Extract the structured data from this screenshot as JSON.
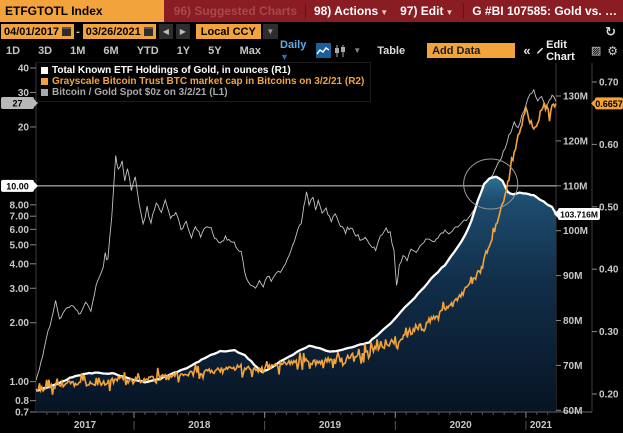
{
  "toolbar": {
    "ticker": "ETFGTOTL Index",
    "suggested_charts": "96) Suggested Charts",
    "actions": "98) Actions",
    "edit": "97) Edit",
    "chart_title": "G #BI 107585: Gold vs. …",
    "date_from": "04/01/2017",
    "date_to": "03/26/2021",
    "date_separator": "-",
    "prev_label": "◀",
    "next_label": "▶",
    "currency": "Local CCY",
    "ranges": [
      "1D",
      "3D",
      "1M",
      "6M",
      "YTD",
      "1Y",
      "5Y",
      "Max"
    ],
    "period": "Daily",
    "table_label": "Table",
    "add_data_label": "Add Data",
    "collapse_label": "«",
    "edit_chart_label": "Edit Chart"
  },
  "legend": [
    {
      "label": "Total Known ETF Holdings of Gold, in ounces (R1)",
      "color": "#ffffff"
    },
    {
      "label": "Grayscale Bitcoin Trust BTC market cap in Bitcoins on 3/2/21 (R2)",
      "color": "#f2a33c"
    },
    {
      "label": "Bitcoin / Gold Spot $0z on 3/2/21 (L1)",
      "color": "#a8a8a8"
    }
  ],
  "badges": [
    {
      "axis": "L1",
      "value": 26.5,
      "label": "27",
      "bg": "#b8b8b8",
      "fg": "#000000"
    },
    {
      "axis": "L1",
      "value": 10,
      "label": "10.00",
      "bg": "#ffffff",
      "fg": "#000000"
    },
    {
      "axis": "R1",
      "value": 103.716,
      "label": "103.716M",
      "bg": "#ffffff",
      "fg": "#000000"
    },
    {
      "axis": "R2",
      "value": 0.6657,
      "label": "0.6657",
      "bg": "#f2a33c",
      "fg": "#000000"
    }
  ],
  "chart_data": {
    "type": "line",
    "title": "Gold vs Bitcoin: ETF holdings, GBTC market cap, BTC/Gold ratio",
    "x_axis": {
      "label_years": [
        "2017",
        "2018",
        "2019",
        "2020",
        "2021"
      ],
      "range": [
        2017.25,
        2021.23
      ],
      "grid": false
    },
    "axes": {
      "L1": {
        "scale": "log",
        "range": [
          0.7,
          41
        ],
        "ticks": [
          {
            "v": 40,
            "label": "40"
          },
          {
            "v": 30,
            "label": "30"
          },
          {
            "v": 20,
            "label": "20"
          },
          {
            "v": 10,
            "label": "10.00"
          },
          {
            "v": 8,
            "label": "8.00"
          },
          {
            "v": 7,
            "label": "7.00"
          },
          {
            "v": 6,
            "label": "6.00"
          },
          {
            "v": 5,
            "label": "5.00"
          },
          {
            "v": 4,
            "label": "4.00"
          },
          {
            "v": 3,
            "label": "3.00"
          },
          {
            "v": 2,
            "label": "2.00"
          },
          {
            "v": 1,
            "label": "1.00"
          },
          {
            "v": 0.8,
            "label": "0.8"
          },
          {
            "v": 0.7,
            "label": "0.7"
          }
        ]
      },
      "R1": {
        "scale": "linear",
        "range": [
          59.6,
          137.3
        ],
        "unit": "M oz",
        "ticks": [
          {
            "v": 130,
            "label": "130M"
          },
          {
            "v": 120,
            "label": "120M"
          },
          {
            "v": 110,
            "label": "110M"
          },
          {
            "v": 100,
            "label": "100M"
          },
          {
            "v": 90,
            "label": "90M"
          },
          {
            "v": 80,
            "label": "80M"
          },
          {
            "v": 70,
            "label": "70M"
          },
          {
            "v": 60,
            "label": "60M"
          }
        ]
      },
      "R2": {
        "scale": "linear",
        "range": [
          0.171,
          0.73
        ],
        "unit": "M BTC",
        "ticks": [
          {
            "v": 0.7,
            "label": "0.70"
          },
          {
            "v": 0.6,
            "label": "0.60"
          },
          {
            "v": 0.5,
            "label": "0.50"
          },
          {
            "v": 0.4,
            "label": "0.40"
          },
          {
            "v": 0.3,
            "label": "0.30"
          },
          {
            "v": 0.2,
            "label": "0.20"
          }
        ]
      }
    },
    "annotations": {
      "hline": {
        "axis": "L1",
        "value": 10
      },
      "ellipse": {
        "x": 2020.73,
        "axis": "R1",
        "value": 110.4,
        "rx": 27,
        "ry": 25
      }
    },
    "series": [
      {
        "name": "Total Known ETF Holdings of Gold, in ounces",
        "axis": "R1",
        "color": "#ffffff",
        "fill": true,
        "last": 103.716,
        "points": [
          [
            2017.25,
            64.3
          ],
          [
            2017.4,
            65.7
          ],
          [
            2017.55,
            67.7
          ],
          [
            2017.7,
            68.4
          ],
          [
            2017.85,
            68.1
          ],
          [
            2017.97,
            67.0
          ],
          [
            2018.08,
            66.3
          ],
          [
            2018.2,
            67.0
          ],
          [
            2018.31,
            68.4
          ],
          [
            2018.43,
            69.7
          ],
          [
            2018.54,
            71.7
          ],
          [
            2018.66,
            73.1
          ],
          [
            2018.77,
            73.3
          ],
          [
            2018.85,
            72.2
          ],
          [
            2018.92,
            70.2
          ],
          [
            2018.98,
            68.6
          ],
          [
            2019.04,
            69.3
          ],
          [
            2019.12,
            70.8
          ],
          [
            2019.19,
            71.9
          ],
          [
            2019.27,
            73.3
          ],
          [
            2019.34,
            74.3
          ],
          [
            2019.42,
            73.9
          ],
          [
            2019.5,
            73.0
          ],
          [
            2019.57,
            73.3
          ],
          [
            2019.69,
            74.3
          ],
          [
            2019.8,
            75.2
          ],
          [
            2019.92,
            78.3
          ],
          [
            2019.99,
            80.1
          ],
          [
            2020.07,
            82.9
          ],
          [
            2020.15,
            85.1
          ],
          [
            2020.22,
            87.4
          ],
          [
            2020.3,
            90.1
          ],
          [
            2020.38,
            92.4
          ],
          [
            2020.45,
            95.3
          ],
          [
            2020.53,
            98.7
          ],
          [
            2020.58,
            102.0
          ],
          [
            2020.63,
            106.5
          ],
          [
            2020.68,
            110.3
          ],
          [
            2020.72,
            111.6
          ],
          [
            2020.77,
            112.0
          ],
          [
            2020.82,
            111.1
          ],
          [
            2020.86,
            108.7
          ],
          [
            2020.9,
            108.0
          ],
          [
            2020.95,
            108.5
          ],
          [
            2021.0,
            108.2
          ],
          [
            2021.06,
            107.8
          ],
          [
            2021.11,
            106.9
          ],
          [
            2021.16,
            106.0
          ],
          [
            2021.2,
            105.3
          ],
          [
            2021.23,
            103.716
          ]
        ]
      },
      {
        "name": "Grayscale Bitcoin Trust BTC market cap in Bitcoins",
        "axis": "R2",
        "color": "#f2a33c",
        "last": 0.6657,
        "points": [
          [
            2017.25,
            0.205
          ],
          [
            2017.43,
            0.215
          ],
          [
            2017.59,
            0.218
          ],
          [
            2017.74,
            0.215
          ],
          [
            2017.89,
            0.225
          ],
          [
            2018.05,
            0.222
          ],
          [
            2018.2,
            0.228
          ],
          [
            2018.35,
            0.232
          ],
          [
            2018.5,
            0.235
          ],
          [
            2018.66,
            0.238
          ],
          [
            2018.81,
            0.243
          ],
          [
            2018.96,
            0.24
          ],
          [
            2019.12,
            0.248
          ],
          [
            2019.27,
            0.253
          ],
          [
            2019.42,
            0.25
          ],
          [
            2019.57,
            0.258
          ],
          [
            2019.73,
            0.264
          ],
          [
            2019.88,
            0.272
          ],
          [
            2019.99,
            0.282
          ],
          [
            2020.11,
            0.298
          ],
          [
            2020.22,
            0.312
          ],
          [
            2020.34,
            0.33
          ],
          [
            2020.43,
            0.345
          ],
          [
            2020.51,
            0.36
          ],
          [
            2020.58,
            0.382
          ],
          [
            2020.66,
            0.405
          ],
          [
            2020.72,
            0.438
          ],
          [
            2020.77,
            0.47
          ],
          [
            2020.82,
            0.505
          ],
          [
            2020.87,
            0.545
          ],
          [
            2020.91,
            0.59
          ],
          [
            2020.96,
            0.628
          ],
          [
            2021.0,
            0.655
          ],
          [
            2021.03,
            0.638
          ],
          [
            2021.07,
            0.624
          ],
          [
            2021.11,
            0.652
          ],
          [
            2021.15,
            0.668
          ],
          [
            2021.18,
            0.645
          ],
          [
            2021.2,
            0.66
          ],
          [
            2021.23,
            0.6657
          ]
        ]
      },
      {
        "name": "Bitcoin / Gold Spot $0z",
        "axis": "L1",
        "color": "#c2c2c2",
        "last": 27,
        "points": [
          [
            2017.25,
            1.0
          ],
          [
            2017.3,
            1.35
          ],
          [
            2017.33,
            1.7
          ],
          [
            2017.37,
            2.1
          ],
          [
            2017.4,
            2.6
          ],
          [
            2017.43,
            2.1
          ],
          [
            2017.48,
            2.35
          ],
          [
            2017.53,
            2.45
          ],
          [
            2017.59,
            2.2
          ],
          [
            2017.63,
            2.55
          ],
          [
            2017.67,
            2.3
          ],
          [
            2017.71,
            3.1
          ],
          [
            2017.75,
            3.6
          ],
          [
            2017.78,
            4.5
          ],
          [
            2017.8,
            4.2
          ],
          [
            2017.83,
            7.0
          ],
          [
            2017.86,
            14.5
          ],
          [
            2017.88,
            11.8
          ],
          [
            2017.91,
            13.3
          ],
          [
            2017.93,
            10.5
          ],
          [
            2017.95,
            12.4
          ],
          [
            2017.98,
            9.5
          ],
          [
            2018.01,
            11.0
          ],
          [
            2018.04,
            8.0
          ],
          [
            2018.07,
            6.3
          ],
          [
            2018.1,
            7.6
          ],
          [
            2018.13,
            6.5
          ],
          [
            2018.17,
            8.3
          ],
          [
            2018.21,
            7.3
          ],
          [
            2018.24,
            8.5
          ],
          [
            2018.28,
            6.8
          ],
          [
            2018.32,
            7.4
          ],
          [
            2018.36,
            6.0
          ],
          [
            2018.4,
            6.5
          ],
          [
            2018.44,
            5.4
          ],
          [
            2018.47,
            6.2
          ],
          [
            2018.51,
            5.6
          ],
          [
            2018.55,
            6.4
          ],
          [
            2018.59,
            5.8
          ],
          [
            2018.63,
            5.3
          ],
          [
            2018.66,
            5.1
          ],
          [
            2018.7,
            5.4
          ],
          [
            2018.74,
            5.2
          ],
          [
            2018.78,
            4.9
          ],
          [
            2018.82,
            4.4
          ],
          [
            2018.86,
            3.4
          ],
          [
            2018.89,
            3.15
          ],
          [
            2018.93,
            3.0
          ],
          [
            2018.96,
            3.3
          ],
          [
            2018.99,
            3.1
          ],
          [
            2019.02,
            3.5
          ],
          [
            2019.05,
            3.3
          ],
          [
            2019.08,
            3.55
          ],
          [
            2019.12,
            3.65
          ],
          [
            2019.16,
            4.0
          ],
          [
            2019.2,
            4.6
          ],
          [
            2019.24,
            5.6
          ],
          [
            2019.28,
            6.5
          ],
          [
            2019.3,
            7.8
          ],
          [
            2019.32,
            9.2
          ],
          [
            2019.34,
            8.0
          ],
          [
            2019.37,
            8.8
          ],
          [
            2019.39,
            7.6
          ],
          [
            2019.41,
            8.4
          ],
          [
            2019.44,
            7.2
          ],
          [
            2019.47,
            7.8
          ],
          [
            2019.51,
            6.6
          ],
          [
            2019.54,
            7.2
          ],
          [
            2019.58,
            6.3
          ],
          [
            2019.62,
            5.8
          ],
          [
            2019.66,
            6.2
          ],
          [
            2019.7,
            5.5
          ],
          [
            2019.73,
            5.2
          ],
          [
            2019.77,
            5.5
          ],
          [
            2019.81,
            5.0
          ],
          [
            2019.85,
            4.7
          ],
          [
            2019.87,
            5.2
          ],
          [
            2019.9,
            5.6
          ],
          [
            2019.93,
            6.2
          ],
          [
            2019.96,
            5.8
          ],
          [
            2019.99,
            4.6
          ],
          [
            2020.01,
            3.0
          ],
          [
            2020.03,
            3.9
          ],
          [
            2020.06,
            4.4
          ],
          [
            2020.09,
            4.2
          ],
          [
            2020.12,
            4.8
          ],
          [
            2020.16,
            4.6
          ],
          [
            2020.19,
            5.0
          ],
          [
            2020.22,
            5.2
          ],
          [
            2020.26,
            5.4
          ],
          [
            2020.3,
            5.2
          ],
          [
            2020.34,
            5.6
          ],
          [
            2020.38,
            5.9
          ],
          [
            2020.41,
            5.7
          ],
          [
            2020.45,
            6.0
          ],
          [
            2020.49,
            6.3
          ],
          [
            2020.53,
            6.6
          ],
          [
            2020.57,
            6.9
          ],
          [
            2020.61,
            7.6
          ],
          [
            2020.64,
            8.4
          ],
          [
            2020.68,
            9.3
          ],
          [
            2020.72,
            10.6
          ],
          [
            2020.76,
            12.0
          ],
          [
            2020.8,
            13.5
          ],
          [
            2020.84,
            15.5
          ],
          [
            2020.87,
            18.0
          ],
          [
            2020.91,
            21.0
          ],
          [
            2020.94,
            19.5
          ],
          [
            2020.97,
            23.0
          ],
          [
            2021.0,
            26.0
          ],
          [
            2021.03,
            29.5
          ],
          [
            2021.06,
            30.5
          ],
          [
            2021.09,
            27.0
          ],
          [
            2021.12,
            28.5
          ],
          [
            2021.15,
            25.5
          ],
          [
            2021.18,
            27.5
          ],
          [
            2021.2,
            29.0
          ],
          [
            2021.23,
            27.0
          ]
        ]
      }
    ]
  }
}
